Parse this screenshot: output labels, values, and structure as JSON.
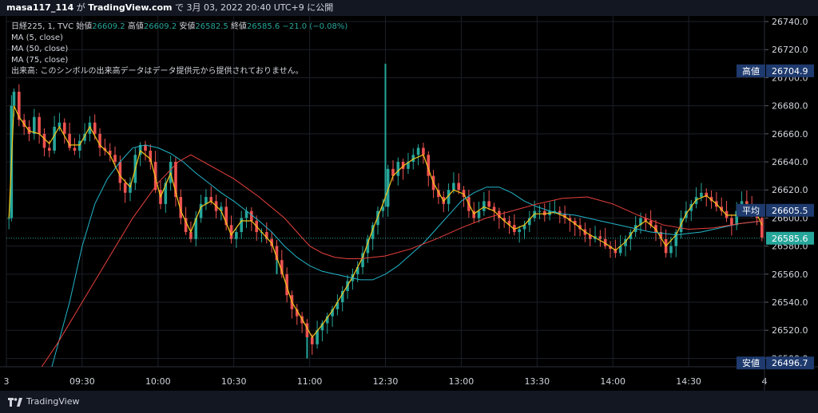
{
  "header": {
    "user": "masa117_114",
    "text_ga": "が",
    "site": "TradingView.com",
    "text_de": "で",
    "datetime": "3月 03, 2022 20:40 UTC+9",
    "text_publish": "に公開"
  },
  "legend": {
    "symbol": "日経225, 1, TVC",
    "open_label": "始値",
    "open_value": "26609.2",
    "high_label": "高値",
    "high_value": "26609.2",
    "low_label": "安値",
    "low_value": "26582.5",
    "close_label": "終値",
    "close_value": "26585.6",
    "change": "−21.0 (−0.08%)",
    "ma_lines": [
      "MA (5, close)",
      "MA (50, close)",
      "MA (75, close)"
    ],
    "volume_note": "出来高: このシンボルの出来高データはデータ提供元から提供されておりません。"
  },
  "footer": {
    "brand": "TradingView"
  },
  "colors": {
    "up": "#26a69a",
    "down": "#ef5350",
    "ma5": "#f5c71a",
    "ma50": "#22b5c9",
    "ma75": "#e8413c",
    "grid": "#1c1f28",
    "axis_text": "#d1d4dc",
    "label_bg": "#1e3a6e",
    "price_line": "#26a69a"
  },
  "chart_data": {
    "type": "candlestick",
    "title": "日経225, 1, TVC",
    "xlabel": "",
    "ylabel": "",
    "ylim": [
      26494,
      26744
    ],
    "y_ticks": [
      26500,
      26520,
      26540,
      26560,
      26580,
      26600,
      26620,
      26640,
      26660,
      26680,
      26700,
      26720,
      26740
    ],
    "y_tick_labels": [
      "26500.0",
      "26520.0",
      "26540.0",
      "26560.0",
      "26580.0",
      "26600.0",
      "26620.0",
      "26640.0",
      "26660.0",
      "26680.0",
      "26700.0",
      "26720.0",
      "26740.0"
    ],
    "x_ticks": [
      {
        "label": "3",
        "minute": 0
      },
      {
        "label": "09:30",
        "minute": 30
      },
      {
        "label": "10:00",
        "minute": 60
      },
      {
        "label": "10:30",
        "minute": 90
      },
      {
        "label": "11:00",
        "minute": 120
      },
      {
        "label": "12:30",
        "minute": 150
      },
      {
        "label": "13:00",
        "minute": 180
      },
      {
        "label": "13:30",
        "minute": 210
      },
      {
        "label": "14:00",
        "minute": 240
      },
      {
        "label": "14:30",
        "minute": 270
      },
      {
        "label": "4",
        "minute": 300
      }
    ],
    "x_range_minutes": [
      0,
      300
    ],
    "close_path": [
      [
        1,
        26600
      ],
      [
        2,
        26680
      ],
      [
        3,
        26690
      ],
      [
        5,
        26670
      ],
      [
        7,
        26665
      ],
      [
        9,
        26660
      ],
      [
        11,
        26672
      ],
      [
        13,
        26660
      ],
      [
        15,
        26650
      ],
      [
        17,
        26648
      ],
      [
        19,
        26665
      ],
      [
        21,
        26668
      ],
      [
        23,
        26660
      ],
      [
        25,
        26650
      ],
      [
        27,
        26648
      ],
      [
        29,
        26655
      ],
      [
        31,
        26660
      ],
      [
        33,
        26668
      ],
      [
        35,
        26660
      ],
      [
        37,
        26650
      ],
      [
        39,
        26648
      ],
      [
        41,
        26645
      ],
      [
        43,
        26640
      ],
      [
        45,
        26625
      ],
      [
        47,
        26618
      ],
      [
        49,
        26625
      ],
      [
        51,
        26645
      ],
      [
        53,
        26652
      ],
      [
        55,
        26648
      ],
      [
        57,
        26640
      ],
      [
        59,
        26620
      ],
      [
        61,
        26610
      ],
      [
        63,
        26625
      ],
      [
        65,
        26640
      ],
      [
        67,
        26615
      ],
      [
        69,
        26600
      ],
      [
        71,
        26590
      ],
      [
        73,
        26585
      ],
      [
        75,
        26600
      ],
      [
        77,
        26610
      ],
      [
        79,
        26615
      ],
      [
        81,
        26612
      ],
      [
        83,
        26605
      ],
      [
        85,
        26608
      ],
      [
        87,
        26595
      ],
      [
        89,
        26585
      ],
      [
        91,
        26590
      ],
      [
        93,
        26600
      ],
      [
        95,
        26605
      ],
      [
        97,
        26598
      ],
      [
        99,
        26590
      ],
      [
        101,
        26590
      ],
      [
        103,
        26585
      ],
      [
        105,
        26580
      ],
      [
        107,
        26570
      ],
      [
        109,
        26560
      ],
      [
        111,
        26545
      ],
      [
        113,
        26535
      ],
      [
        115,
        26530
      ],
      [
        117,
        26525
      ],
      [
        119,
        26515
      ],
      [
        121,
        26510
      ],
      [
        123,
        26520
      ],
      [
        125,
        26525
      ],
      [
        127,
        26530
      ],
      [
        129,
        26535
      ],
      [
        131,
        26540
      ],
      [
        133,
        26548
      ],
      [
        135,
        26555
      ],
      [
        137,
        26560
      ],
      [
        139,
        26565
      ],
      [
        141,
        26575
      ],
      [
        143,
        26585
      ],
      [
        145,
        26595
      ],
      [
        147,
        26605
      ],
      [
        149,
        26608
      ],
      [
        151,
        26635
      ],
      [
        153,
        26630
      ],
      [
        155,
        26640
      ],
      [
        157,
        26635
      ],
      [
        159,
        26640
      ],
      [
        161,
        26645
      ],
      [
        163,
        26650
      ],
      [
        165,
        26645
      ],
      [
        167,
        26630
      ],
      [
        169,
        26620
      ],
      [
        171,
        26615
      ],
      [
        173,
        26610
      ],
      [
        175,
        26620
      ],
      [
        177,
        26625
      ],
      [
        179,
        26620
      ],
      [
        181,
        26615
      ],
      [
        183,
        26605
      ],
      [
        185,
        26600
      ],
      [
        187,
        26605
      ],
      [
        189,
        26612
      ],
      [
        191,
        26608
      ],
      [
        193,
        26605
      ],
      [
        195,
        26600
      ],
      [
        197,
        26598
      ],
      [
        199,
        26595
      ],
      [
        201,
        26590
      ],
      [
        203,
        26592
      ],
      [
        205,
        26595
      ],
      [
        207,
        26600
      ],
      [
        209,
        26605
      ],
      [
        211,
        26605
      ],
      [
        213,
        26602
      ],
      [
        215,
        26605
      ],
      [
        217,
        26605
      ],
      [
        219,
        26603
      ],
      [
        221,
        26600
      ],
      [
        223,
        26598
      ],
      [
        225,
        26595
      ],
      [
        227,
        26592
      ],
      [
        229,
        26588
      ],
      [
        231,
        26585
      ],
      [
        233,
        26587
      ],
      [
        235,
        26585
      ],
      [
        237,
        26580
      ],
      [
        239,
        26578
      ],
      [
        241,
        26575
      ],
      [
        243,
        26580
      ],
      [
        245,
        26585
      ],
      [
        247,
        26590
      ],
      [
        249,
        26595
      ],
      [
        251,
        26600
      ],
      [
        253,
        26598
      ],
      [
        255,
        26595
      ],
      [
        257,
        26590
      ],
      [
        259,
        26585
      ],
      [
        261,
        26575
      ],
      [
        263,
        26580
      ],
      [
        265,
        26590
      ],
      [
        267,
        26600
      ],
      [
        269,
        26605
      ],
      [
        271,
        26610
      ],
      [
        273,
        26615
      ],
      [
        275,
        26618
      ],
      [
        277,
        26615
      ],
      [
        279,
        26612
      ],
      [
        281,
        26608
      ],
      [
        283,
        26605
      ],
      [
        285,
        26600
      ],
      [
        287,
        26595
      ],
      [
        289,
        26605
      ],
      [
        291,
        26612
      ],
      [
        293,
        26610
      ],
      [
        295,
        26605
      ],
      [
        297,
        26600
      ],
      [
        299,
        26586
      ]
    ],
    "spikes": [
      {
        "minute": 150,
        "high": 26710
      },
      {
        "minute": 119,
        "low": 26500
      },
      {
        "minute": 107,
        "low": 26560
      }
    ],
    "series": [
      {
        "name": "MA (5, close)",
        "points": [
          [
            1,
            26600
          ],
          [
            3,
            26680
          ],
          [
            5,
            26672
          ],
          [
            9,
            26662
          ],
          [
            13,
            26660
          ],
          [
            17,
            26653
          ],
          [
            21,
            26665
          ],
          [
            25,
            26652
          ],
          [
            29,
            26652
          ],
          [
            33,
            26665
          ],
          [
            37,
            26652
          ],
          [
            41,
            26645
          ],
          [
            45,
            26630
          ],
          [
            49,
            26622
          ],
          [
            53,
            26648
          ],
          [
            57,
            26642
          ],
          [
            61,
            26615
          ],
          [
            65,
            26632
          ],
          [
            69,
            26605
          ],
          [
            73,
            26590
          ],
          [
            77,
            26608
          ],
          [
            81,
            26612
          ],
          [
            85,
            26605
          ],
          [
            89,
            26588
          ],
          [
            93,
            26598
          ],
          [
            97,
            26598
          ],
          [
            101,
            26590
          ],
          [
            105,
            26582
          ],
          [
            109,
            26562
          ],
          [
            113,
            26540
          ],
          [
            117,
            26528
          ],
          [
            121,
            26515
          ],
          [
            125,
            26524
          ],
          [
            129,
            26534
          ],
          [
            133,
            26546
          ],
          [
            137,
            26558
          ],
          [
            141,
            26572
          ],
          [
            145,
            26592
          ],
          [
            149,
            26610
          ],
          [
            153,
            26630
          ],
          [
            157,
            26637
          ],
          [
            161,
            26642
          ],
          [
            165,
            26645
          ],
          [
            169,
            26625
          ],
          [
            173,
            26612
          ],
          [
            177,
            26620
          ],
          [
            181,
            26617
          ],
          [
            185,
            26603
          ],
          [
            189,
            26608
          ],
          [
            193,
            26605
          ],
          [
            197,
            26598
          ],
          [
            201,
            26592
          ],
          [
            205,
            26595
          ],
          [
            209,
            26603
          ],
          [
            213,
            26603
          ],
          [
            217,
            26604
          ],
          [
            221,
            26601
          ],
          [
            225,
            26596
          ],
          [
            229,
            26590
          ],
          [
            233,
            26586
          ],
          [
            237,
            26582
          ],
          [
            241,
            26577
          ],
          [
            245,
            26583
          ],
          [
            249,
            26593
          ],
          [
            253,
            26598
          ],
          [
            257,
            26592
          ],
          [
            261,
            26580
          ],
          [
            265,
            26588
          ],
          [
            269,
            26603
          ],
          [
            273,
            26613
          ],
          [
            277,
            26616
          ],
          [
            281,
            26610
          ],
          [
            285,
            26602
          ],
          [
            289,
            26602
          ],
          [
            293,
            26610
          ],
          [
            297,
            26603
          ],
          [
            299,
            26595
          ]
        ]
      },
      {
        "name": "MA (50, close)",
        "points": [
          [
            18,
            26494
          ],
          [
            25,
            26540
          ],
          [
            30,
            26580
          ],
          [
            35,
            26610
          ],
          [
            40,
            26628
          ],
          [
            45,
            26640
          ],
          [
            50,
            26650
          ],
          [
            55,
            26652
          ],
          [
            60,
            26650
          ],
          [
            65,
            26646
          ],
          [
            70,
            26640
          ],
          [
            75,
            26632
          ],
          [
            80,
            26625
          ],
          [
            85,
            26618
          ],
          [
            90,
            26612
          ],
          [
            95,
            26605
          ],
          [
            100,
            26598
          ],
          [
            105,
            26590
          ],
          [
            110,
            26580
          ],
          [
            115,
            26572
          ],
          [
            120,
            26566
          ],
          [
            125,
            26562
          ],
          [
            130,
            26560
          ],
          [
            135,
            26558
          ],
          [
            140,
            26556
          ],
          [
            145,
            26556
          ],
          [
            150,
            26560
          ],
          [
            155,
            26566
          ],
          [
            160,
            26574
          ],
          [
            165,
            26582
          ],
          [
            170,
            26592
          ],
          [
            175,
            26602
          ],
          [
            180,
            26612
          ],
          [
            185,
            26618
          ],
          [
            190,
            26622
          ],
          [
            195,
            26622
          ],
          [
            200,
            26618
          ],
          [
            205,
            26612
          ],
          [
            210,
            26608
          ],
          [
            215,
            26605
          ],
          [
            220,
            26603
          ],
          [
            225,
            26602
          ],
          [
            230,
            26600
          ],
          [
            235,
            26598
          ],
          [
            240,
            26596
          ],
          [
            245,
            26594
          ],
          [
            250,
            26592
          ],
          [
            255,
            26590
          ],
          [
            260,
            26589
          ],
          [
            265,
            26588
          ],
          [
            270,
            26589
          ],
          [
            275,
            26590
          ],
          [
            280,
            26592
          ],
          [
            285,
            26594
          ],
          [
            290,
            26596
          ],
          [
            295,
            26597
          ],
          [
            299,
            26598
          ]
        ]
      },
      {
        "name": "MA (75, close)",
        "points": [
          [
            14,
            26494
          ],
          [
            20,
            26510
          ],
          [
            30,
            26540
          ],
          [
            40,
            26570
          ],
          [
            50,
            26600
          ],
          [
            60,
            26625
          ],
          [
            68,
            26640
          ],
          [
            73,
            26645
          ],
          [
            80,
            26638
          ],
          [
            90,
            26628
          ],
          [
            100,
            26615
          ],
          [
            110,
            26600
          ],
          [
            115,
            26590
          ],
          [
            120,
            26580
          ],
          [
            125,
            26575
          ],
          [
            130,
            26572
          ],
          [
            135,
            26571
          ],
          [
            140,
            26571
          ],
          [
            150,
            26573
          ],
          [
            160,
            26578
          ],
          [
            170,
            26585
          ],
          [
            180,
            26593
          ],
          [
            190,
            26600
          ],
          [
            200,
            26605
          ],
          [
            210,
            26610
          ],
          [
            220,
            26614
          ],
          [
            230,
            26615
          ],
          [
            240,
            26610
          ],
          [
            250,
            26602
          ],
          [
            260,
            26595
          ],
          [
            270,
            26592
          ],
          [
            280,
            26593
          ],
          [
            290,
            26596
          ],
          [
            299,
            26598
          ]
        ]
      }
    ],
    "price_labels": [
      {
        "name": "高値",
        "value": "26704.9",
        "y": 26704.9
      },
      {
        "name": "平均",
        "value": "26605.5",
        "y": 26605.5
      },
      {
        "name": "",
        "value": "26585.6",
        "y": 26585.6
      },
      {
        "name": "安値",
        "value": "26496.7",
        "y": 26496.7
      }
    ],
    "current_price": 26585.6,
    "legend_position": "top-left"
  }
}
